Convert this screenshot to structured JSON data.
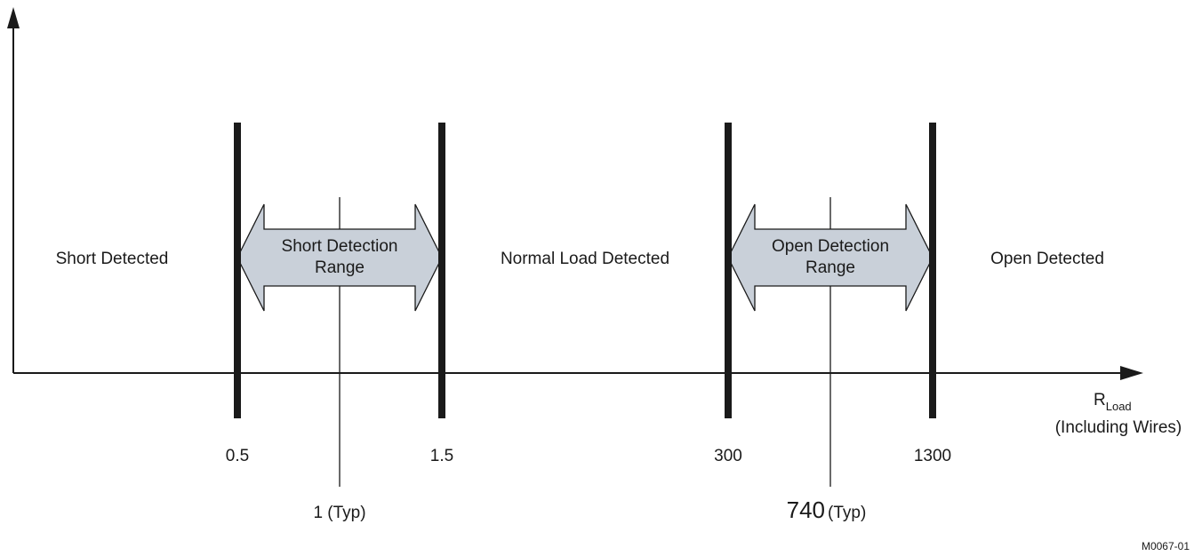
{
  "regions": {
    "short_detected": "Short Detected",
    "normal_load_detected": "Normal Load Detected",
    "open_detected": "Open Detected"
  },
  "arrows": {
    "short_range": {
      "line1": "Short Detection",
      "line2": "Range"
    },
    "open_range": {
      "line1": "Open Detection",
      "line2": "Range"
    }
  },
  "thresholds": {
    "short_min": "0.5",
    "short_max": "1.5",
    "open_min": "300",
    "open_max": "1300"
  },
  "typical": {
    "short_value": "1 (Typ)",
    "open_value": "740",
    "open_suffix": "(Typ)"
  },
  "x_axis": {
    "label_main": "R",
    "label_sub": "Load",
    "label_note": "(Including Wires)"
  },
  "figure_id": "M0067-01",
  "colors": {
    "line": "#1a1a1a",
    "arrow_fill": "#c9d0d9"
  }
}
